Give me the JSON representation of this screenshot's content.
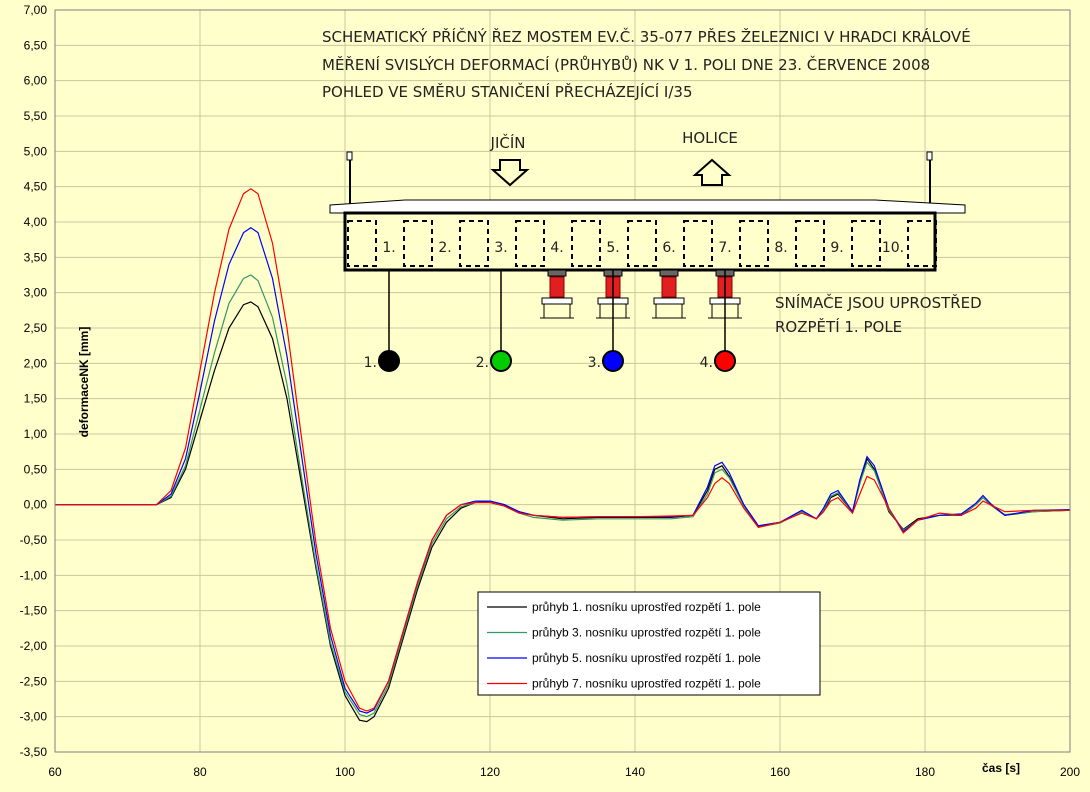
{
  "chart_data": {
    "type": "line",
    "title_lines": [
      "SCHEMATICKÝ PŘÍČNÝ ŘEZ MOSTEM EV.Č. 35-077 PŘES ŽELEZNICI V HRADCI KRÁLOVÉ",
      "MĚŘENÍ SVISLÝCH DEFORMACÍ (PRŮHYBŮ) NK V 1. POLI DNE 23. ČERVENCE 2008",
      "POHLED VE SMĚRU STANIČENÍ PŘECHÁZEJÍCÍ I/35"
    ],
    "direction_left": "JIČÍN",
    "direction_right": "HOLICE",
    "girders": [
      "1.",
      "2.",
      "3.",
      "4.",
      "5.",
      "6.",
      "7.",
      "8.",
      "9.",
      "10."
    ],
    "sensors": [
      {
        "label": "1.",
        "color": "#000000"
      },
      {
        "label": "2.",
        "color": "#00cc00"
      },
      {
        "label": "3.",
        "color": "#0000ff"
      },
      {
        "label": "4.",
        "color": "#ff0000"
      }
    ],
    "note_lines": [
      "SNÍMAČE JSOU UPROSTŘED",
      "ROZPĚTÍ 1. POLE"
    ],
    "x_label": "čas [s]",
    "y_label": "deformaceNK [mm]",
    "x": [
      60,
      65,
      70,
      74,
      76,
      78,
      80,
      82,
      84,
      86,
      87,
      88,
      90,
      92,
      94,
      96,
      98,
      100,
      102,
      103,
      104,
      106,
      108,
      110,
      112,
      114,
      116,
      118,
      120,
      122,
      124,
      126,
      130,
      135,
      140,
      145,
      148,
      150,
      151,
      152,
      153,
      155,
      157,
      160,
      163,
      165,
      166,
      167,
      168,
      170,
      171,
      172,
      173,
      175,
      177,
      179,
      182,
      185,
      187,
      188,
      189,
      191,
      195,
      200
    ],
    "series": [
      {
        "name": "průhyb 1. nosníku uprostřed rozpětí 1. pole",
        "color": "#000000",
        "values": [
          0,
          0,
          0,
          0,
          0.1,
          0.5,
          1.2,
          1.9,
          2.5,
          2.83,
          2.87,
          2.8,
          2.35,
          1.5,
          0.3,
          -0.9,
          -2.0,
          -2.7,
          -3.05,
          -3.07,
          -3.0,
          -2.6,
          -1.9,
          -1.2,
          -0.6,
          -0.25,
          -0.05,
          0.03,
          0.05,
          0.0,
          -0.1,
          -0.15,
          -0.2,
          -0.18,
          -0.18,
          -0.18,
          -0.15,
          0.2,
          0.5,
          0.55,
          0.4,
          0.0,
          -0.3,
          -0.25,
          -0.1,
          -0.2,
          -0.1,
          0.1,
          0.15,
          -0.1,
          0.3,
          0.65,
          0.5,
          -0.1,
          -0.35,
          -0.2,
          -0.15,
          -0.15,
          0.0,
          0.1,
          0.0,
          -0.15,
          -0.1,
          -0.08
        ]
      },
      {
        "name": "průhyb 3. nosníku uprostřed rozpětí 1. pole",
        "color": "#339966",
        "values": [
          0,
          0,
          0,
          0,
          0.12,
          0.55,
          1.35,
          2.15,
          2.85,
          3.2,
          3.25,
          3.17,
          2.65,
          1.7,
          0.4,
          -0.85,
          -1.95,
          -2.65,
          -2.97,
          -3.0,
          -2.95,
          -2.55,
          -1.85,
          -1.15,
          -0.55,
          -0.2,
          -0.03,
          0.03,
          0.03,
          -0.02,
          -0.12,
          -0.18,
          -0.22,
          -0.2,
          -0.2,
          -0.2,
          -0.17,
          0.15,
          0.45,
          0.5,
          0.38,
          -0.02,
          -0.32,
          -0.26,
          -0.1,
          -0.2,
          -0.08,
          0.12,
          0.17,
          -0.1,
          0.3,
          0.6,
          0.48,
          -0.08,
          -0.36,
          -0.22,
          -0.15,
          -0.14,
          0.0,
          0.1,
          0.0,
          -0.14,
          -0.1,
          -0.08
        ]
      },
      {
        "name": "průhyb 5. nosníku uprostřed rozpětí 1. pole",
        "color": "#0000ff",
        "values": [
          0,
          0,
          0,
          0,
          0.15,
          0.65,
          1.6,
          2.6,
          3.4,
          3.85,
          3.92,
          3.85,
          3.2,
          2.1,
          0.7,
          -0.7,
          -1.85,
          -2.6,
          -2.92,
          -2.95,
          -2.9,
          -2.5,
          -1.8,
          -1.1,
          -0.5,
          -0.15,
          0.0,
          0.05,
          0.05,
          0.0,
          -0.1,
          -0.15,
          -0.18,
          -0.17,
          -0.17,
          -0.17,
          -0.15,
          0.25,
          0.55,
          0.6,
          0.45,
          0.0,
          -0.3,
          -0.25,
          -0.08,
          -0.2,
          -0.05,
          0.15,
          0.2,
          -0.1,
          0.35,
          0.68,
          0.55,
          -0.05,
          -0.38,
          -0.22,
          -0.15,
          -0.13,
          0.02,
          0.13,
          0.02,
          -0.15,
          -0.08,
          -0.07
        ]
      },
      {
        "name": "průhyb 7. nosníku uprostřed rozpětí 1. pole",
        "color": "#ff0000",
        "values": [
          0,
          0,
          0,
          0,
          0.2,
          0.8,
          1.9,
          3.0,
          3.9,
          4.4,
          4.47,
          4.4,
          3.7,
          2.5,
          0.95,
          -0.55,
          -1.75,
          -2.5,
          -2.88,
          -2.92,
          -2.88,
          -2.5,
          -1.8,
          -1.1,
          -0.5,
          -0.15,
          0.0,
          0.03,
          0.03,
          -0.02,
          -0.12,
          -0.15,
          -0.18,
          -0.17,
          -0.17,
          -0.16,
          -0.15,
          0.1,
          0.3,
          0.38,
          0.3,
          -0.05,
          -0.32,
          -0.25,
          -0.12,
          -0.2,
          -0.1,
          0.05,
          0.1,
          -0.12,
          0.15,
          0.4,
          0.35,
          -0.05,
          -0.4,
          -0.22,
          -0.12,
          -0.15,
          -0.05,
          0.05,
          0.0,
          -0.1,
          -0.08,
          -0.08
        ]
      }
    ],
    "xlim": [
      60,
      200
    ],
    "ylim": [
      -3.5,
      7
    ],
    "xticks": [
      60,
      80,
      100,
      120,
      140,
      160,
      180,
      200
    ],
    "yticks": [
      {
        "value": 7,
        "label": "7,00"
      },
      {
        "value": 6.5,
        "label": "6,50"
      },
      {
        "value": 6,
        "label": "6,00"
      },
      {
        "value": 5.5,
        "label": "5,50"
      },
      {
        "value": 5,
        "label": "5,00"
      },
      {
        "value": 4.5,
        "label": "4,50"
      },
      {
        "value": 4,
        "label": "4,00"
      },
      {
        "value": 3.5,
        "label": "3,50"
      },
      {
        "value": 3,
        "label": "3,00"
      },
      {
        "value": 2.5,
        "label": "2,50"
      },
      {
        "value": 2,
        "label": "2,00"
      },
      {
        "value": 1.5,
        "label": "1,50"
      },
      {
        "value": 1,
        "label": "1,00"
      },
      {
        "value": 0.5,
        "label": "0,50"
      },
      {
        "value": 0,
        "label": "0,00"
      },
      {
        "value": -0.5,
        "label": "-0,50"
      },
      {
        "value": -1,
        "label": "-1,00"
      },
      {
        "value": -1.5,
        "label": "-1,50"
      },
      {
        "value": -2,
        "label": "-2,00"
      },
      {
        "value": -2.5,
        "label": "-2,50"
      },
      {
        "value": -3,
        "label": "-3,00"
      },
      {
        "value": -3.5,
        "label": "-3,50"
      }
    ],
    "grid": true
  }
}
